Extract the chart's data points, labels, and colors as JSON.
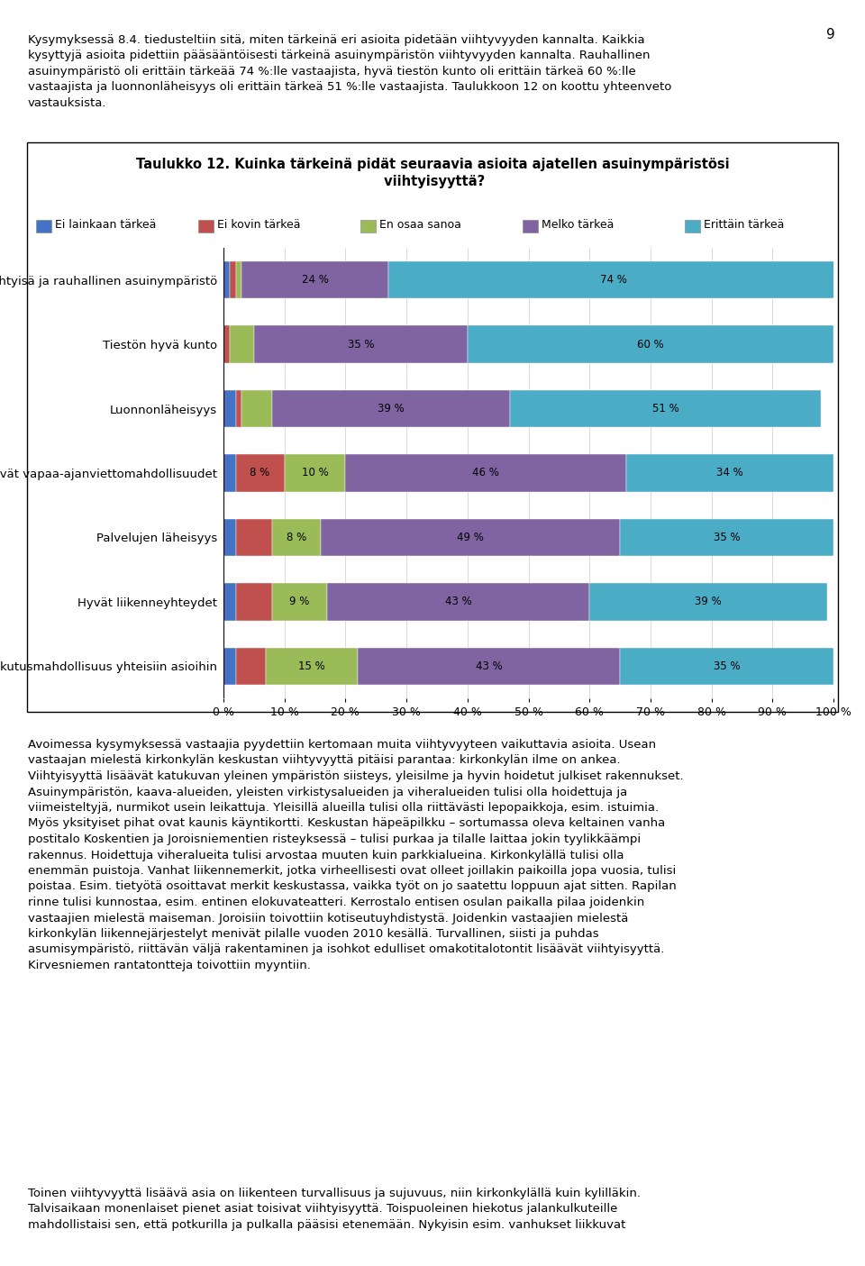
{
  "title_line1": "Taulukko 12. Kuinka tärkeinä pidät seuraavia asioita ajatellen asuinympäristösi",
  "title_line2": " viihtyisyyttä?",
  "categories": [
    "Viihtyisä ja rauhallinen asuinympäristö",
    "Tiestön hyvä kunto",
    "Luonnonläheisyys",
    "Hyvät vapaa-ajanviettomahdollisuudet",
    "Palvelujen läheisyys",
    "Hyvät liikenneyhteydet",
    "Vaikutusmahdollisuus yhteisiin asioihin"
  ],
  "legend_labels": [
    "Ei lainkaan tärkeä",
    "Ei kovin tärkeä",
    "En osaa sanoa",
    "Melko tärkeä",
    "Erittäin tärkeä"
  ],
  "colors": [
    "#4472c4",
    "#c0504d",
    "#9bbb59",
    "#8064a2",
    "#4bacc6"
  ],
  "data": [
    [
      1,
      1,
      1,
      24,
      74
    ],
    [
      0,
      1,
      4,
      35,
      60
    ],
    [
      2,
      1,
      5,
      39,
      51
    ],
    [
      2,
      8,
      10,
      46,
      34
    ],
    [
      2,
      6,
      8,
      49,
      35
    ],
    [
      2,
      6,
      9,
      43,
      39
    ],
    [
      2,
      5,
      15,
      43,
      35
    ]
  ],
  "xtick_values": [
    0,
    10,
    20,
    30,
    40,
    50,
    60,
    70,
    80,
    90,
    100
  ],
  "xtick_labels": [
    "0 %",
    "10 %",
    "20 %",
    "30 %",
    "40 %",
    "50 %",
    "60 %",
    "70 %",
    "80 %",
    "90 %",
    "100 %"
  ],
  "page_number": "9",
  "bar_height": 0.58,
  "label_min_pct": 8,
  "top_text_lines": [
    "Kysymyksessä 8.4. tiedusteltiin sitä, miten tärkeinä eri asioita pidetään viihtyvyyden kannalta. Kaikkia",
    "kysyttyjä asioita pidettiin pääsääntöisesti tärkeinä asuinympäristön viihtyvyyden kannalta. Rauhallinen",
    "asuinympäristö oli erittäin tärkeää 74 %:lle vastaajista, hyvä tiestön kunto oli erittäin tärkeä 60 %:lle",
    "vastaajista ja luonnonläheisyys oli erittäin tärkeä 51 %:lle vastaajista. Taulukkoon 12 on koottu yhteenveto",
    "vastauksista."
  ],
  "bottom_text1_lines": [
    "Avoimessa kysymyksessä vastaajia pyydettiin kertomaan muita viihtyvyyteen vaikuttavia asioita. Usean",
    "vastaajan mielestä kirkonkylän keskustan viihtyvyyttä pitäisi parantaa: kirkonkylän ilme on ankea.",
    "Viihtyisyyttä lisäävät katukuvan yleinen ympäristön siisteys, yleisilme ja hyvin hoidetut julkiset rakennukset.",
    "Asuinympäristön, kaava-alueiden, yleisten virkistysalueiden ja viheralueiden tulisi olla hoidettuja ja",
    "viimeisteltyjä, nurmikot usein leikattuja. Yleisillä alueilla tulisi olla riittävästi lepopaikkoja, esim. istuimia.",
    "Myös yksityiset pihat ovat kaunis käyntikortti. Keskustan häpeäpilkku – sortumassa oleva keltainen vanha",
    "postitalo Koskentien ja Joroisniementien risteyksessä – tulisi purkaa ja tilalle laittaa jokin tyylikkäämpi",
    "rakennus. Hoidettuja viheralueita tulisi arvostaa muuten kuin parkkialueina. Kirkonkylällä tulisi olla",
    "enemmän puistoja. Vanhat liikennemerkit, jotka virheellisesti ovat olleet joillakin paikoilla jopa vuosia, tulisi",
    "poistaa. Esim. tietyötä osoittavat merkit keskustassa, vaikka työt on jo saatettu loppuun ajat sitten. Rapilan",
    "rinne tulisi kunnostaa, esim. entinen elokuvateatteri. Kerrostalo entisen osulan paikalla pilaa joidenkin",
    "vastaajien mielestä maiseman. Joroisiin toivottiin kotiseutuyhdistystä. Joidenkin vastaajien mielestä",
    "kirkonkylän liikennejärjestelyt menivät pilalle vuoden 2010 kesällä. Turvallinen, siisti ja puhdas",
    "asumisympäristö, riittävän väljä rakentaminen ja isohkot edulliset omakotitalotontit lisäävät viihtyisyyttä.",
    "Kirvesniemen rantatontteja toivottiin myyntiin."
  ],
  "bottom_text2_lines": [
    "Toinen viihtyvyyttä lisäävä asia on liikenteen turvallisuus ja sujuvuus, niin kirkonkylällä kuin kylilläkin.",
    "Talvisaikaan monenlaiset pienet asiat toisivat viihtyisyyttä. Toispuoleinen hiekotus jalankulkuteille",
    "mahdollistaisi sen, että potkurilla ja pulkalla pääsisi etenemään. Nykyisin esim. vanhukset liikkuvat"
  ]
}
